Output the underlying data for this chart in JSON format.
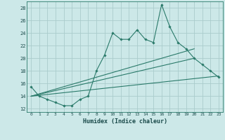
{
  "xlabel": "Humidex (Indice chaleur)",
  "background_color": "#cce8e8",
  "grid_color": "#aacccc",
  "line_color": "#2a7a6a",
  "xlim": [
    -0.5,
    23.5
  ],
  "ylim": [
    11.5,
    29.0
  ],
  "xticks": [
    0,
    1,
    2,
    3,
    4,
    5,
    6,
    7,
    8,
    9,
    10,
    11,
    12,
    13,
    14,
    15,
    16,
    17,
    18,
    19,
    20,
    21,
    22,
    23
  ],
  "yticks": [
    12,
    14,
    16,
    18,
    20,
    22,
    24,
    26,
    28
  ],
  "main_line": {
    "x": [
      0,
      1,
      2,
      3,
      4,
      5,
      6,
      7,
      8,
      9,
      10,
      11,
      12,
      13,
      14,
      15,
      16,
      17,
      18,
      19,
      20,
      21,
      22,
      23
    ],
    "y": [
      15.5,
      14.0,
      13.5,
      13.0,
      12.5,
      12.5,
      13.5,
      14.0,
      18.0,
      20.5,
      24.0,
      23.0,
      23.0,
      24.5,
      23.0,
      22.5,
      28.5,
      25.0,
      22.5,
      21.5,
      20.0,
      19.0,
      18.0,
      17.0
    ]
  },
  "trend_line1": {
    "x": [
      0,
      23
    ],
    "y": [
      14.0,
      17.2
    ]
  },
  "trend_line2": {
    "x": [
      0,
      20
    ],
    "y": [
      14.0,
      21.5
    ]
  },
  "trend_line3": {
    "x": [
      0,
      20
    ],
    "y": [
      14.0,
      20.0
    ]
  }
}
